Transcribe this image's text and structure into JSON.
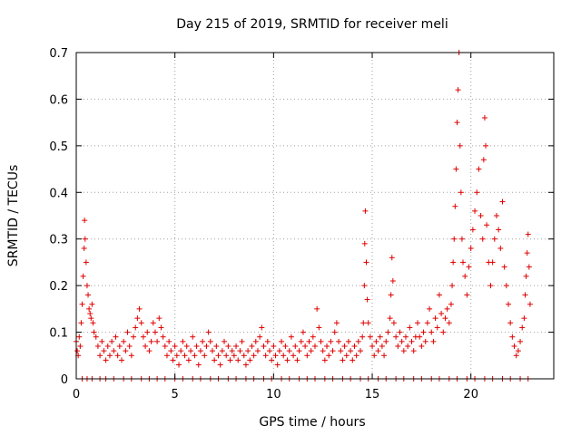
{
  "chart_data": {
    "type": "scatter",
    "title": "Day 215 of 2019, SRMTID for receiver meli",
    "xlabel": "GPS time / hours",
    "ylabel": "SRMTID / TECUs",
    "xlim": [
      0,
      24.2
    ],
    "ylim": [
      0,
      0.7
    ],
    "xticks": [
      0,
      5,
      10,
      15,
      20
    ],
    "yticks": [
      0,
      0.1,
      0.2,
      0.3,
      0.4,
      0.5,
      0.6,
      0.7
    ],
    "xtick_labels": [
      "0",
      "5",
      "10",
      "15",
      "20"
    ],
    "ytick_labels": [
      "0",
      "0.1",
      "0.2",
      "0.3",
      "0.4",
      "0.5",
      "0.6",
      "0.7"
    ],
    "grid": true,
    "marker": "+",
    "color": "#e00000",
    "series": [
      {
        "name": "SRMTID",
        "points": [
          [
            0.0,
            0.08
          ],
          [
            0.05,
            0.06
          ],
          [
            0.1,
            0.05
          ],
          [
            0.15,
            0.09
          ],
          [
            0.2,
            0.07
          ],
          [
            0.25,
            0.12
          ],
          [
            0.3,
            0.16
          ],
          [
            0.35,
            0.22
          ],
          [
            0.4,
            0.28
          ],
          [
            0.42,
            0.34
          ],
          [
            0.45,
            0.3
          ],
          [
            0.5,
            0.25
          ],
          [
            0.55,
            0.2
          ],
          [
            0.6,
            0.18
          ],
          [
            0.65,
            0.15
          ],
          [
            0.7,
            0.14
          ],
          [
            0.75,
            0.13
          ],
          [
            0.8,
            0.16
          ],
          [
            0.85,
            0.12
          ],
          [
            0.9,
            0.1
          ],
          [
            1.0,
            0.09
          ],
          [
            1.1,
            0.07
          ],
          [
            1.2,
            0.05
          ],
          [
            1.3,
            0.08
          ],
          [
            1.4,
            0.06
          ],
          [
            1.5,
            0.04
          ],
          [
            1.6,
            0.07
          ],
          [
            1.7,
            0.05
          ],
          [
            1.8,
            0.08
          ],
          [
            1.9,
            0.06
          ],
          [
            2.0,
            0.09
          ],
          [
            2.1,
            0.05
          ],
          [
            2.2,
            0.07
          ],
          [
            2.3,
            0.04
          ],
          [
            2.4,
            0.08
          ],
          [
            2.5,
            0.06
          ],
          [
            2.6,
            0.1
          ],
          [
            2.7,
            0.07
          ],
          [
            2.8,
            0.05
          ],
          [
            2.9,
            0.09
          ],
          [
            3.0,
            0.11
          ],
          [
            3.1,
            0.13
          ],
          [
            3.2,
            0.15
          ],
          [
            3.3,
            0.12
          ],
          [
            3.4,
            0.09
          ],
          [
            3.5,
            0.07
          ],
          [
            3.6,
            0.1
          ],
          [
            3.7,
            0.06
          ],
          [
            3.8,
            0.08
          ],
          [
            3.9,
            0.12
          ],
          [
            4.0,
            0.1
          ],
          [
            4.1,
            0.08
          ],
          [
            4.2,
            0.13
          ],
          [
            4.3,
            0.11
          ],
          [
            4.4,
            0.09
          ],
          [
            4.5,
            0.07
          ],
          [
            4.6,
            0.05
          ],
          [
            4.7,
            0.08
          ],
          [
            4.8,
            0.06
          ],
          [
            4.9,
            0.04
          ],
          [
            5.0,
            0.07
          ],
          [
            5.1,
            0.05
          ],
          [
            5.2,
            0.03
          ],
          [
            5.3,
            0.06
          ],
          [
            5.4,
            0.08
          ],
          [
            5.5,
            0.05
          ],
          [
            5.6,
            0.07
          ],
          [
            5.7,
            0.04
          ],
          [
            5.8,
            0.06
          ],
          [
            5.9,
            0.09
          ],
          [
            6.0,
            0.05
          ],
          [
            6.1,
            0.07
          ],
          [
            6.2,
            0.03
          ],
          [
            6.3,
            0.06
          ],
          [
            6.4,
            0.08
          ],
          [
            6.5,
            0.05
          ],
          [
            6.6,
            0.07
          ],
          [
            6.7,
            0.1
          ],
          [
            6.8,
            0.08
          ],
          [
            6.9,
            0.06
          ],
          [
            7.0,
            0.04
          ],
          [
            7.1,
            0.07
          ],
          [
            7.2,
            0.05
          ],
          [
            7.3,
            0.03
          ],
          [
            7.4,
            0.06
          ],
          [
            7.5,
            0.08
          ],
          [
            7.6,
            0.05
          ],
          [
            7.7,
            0.07
          ],
          [
            7.8,
            0.04
          ],
          [
            7.9,
            0.06
          ],
          [
            8.0,
            0.05
          ],
          [
            8.1,
            0.07
          ],
          [
            8.2,
            0.04
          ],
          [
            8.3,
            0.06
          ],
          [
            8.4,
            0.08
          ],
          [
            8.5,
            0.05
          ],
          [
            8.6,
            0.03
          ],
          [
            8.7,
            0.06
          ],
          [
            8.8,
            0.04
          ],
          [
            8.9,
            0.07
          ],
          [
            9.0,
            0.05
          ],
          [
            9.1,
            0.08
          ],
          [
            9.2,
            0.06
          ],
          [
            9.3,
            0.09
          ],
          [
            9.4,
            0.11
          ],
          [
            9.5,
            0.07
          ],
          [
            9.6,
            0.05
          ],
          [
            9.7,
            0.08
          ],
          [
            9.8,
            0.06
          ],
          [
            9.9,
            0.04
          ],
          [
            10.0,
            0.07
          ],
          [
            10.1,
            0.05
          ],
          [
            10.2,
            0.03
          ],
          [
            10.3,
            0.06
          ],
          [
            10.4,
            0.08
          ],
          [
            10.5,
            0.05
          ],
          [
            10.6,
            0.07
          ],
          [
            10.7,
            0.04
          ],
          [
            10.8,
            0.06
          ],
          [
            10.9,
            0.09
          ],
          [
            11.0,
            0.05
          ],
          [
            11.1,
            0.07
          ],
          [
            11.2,
            0.04
          ],
          [
            11.3,
            0.06
          ],
          [
            11.4,
            0.08
          ],
          [
            11.5,
            0.1
          ],
          [
            11.6,
            0.07
          ],
          [
            11.7,
            0.05
          ],
          [
            11.8,
            0.08
          ],
          [
            11.9,
            0.06
          ],
          [
            12.0,
            0.09
          ],
          [
            12.1,
            0.07
          ],
          [
            12.2,
            0.15
          ],
          [
            12.3,
            0.11
          ],
          [
            12.4,
            0.08
          ],
          [
            12.5,
            0.06
          ],
          [
            12.6,
            0.04
          ],
          [
            12.7,
            0.07
          ],
          [
            12.8,
            0.05
          ],
          [
            12.9,
            0.08
          ],
          [
            13.0,
            0.06
          ],
          [
            13.1,
            0.1
          ],
          [
            13.2,
            0.12
          ],
          [
            13.3,
            0.08
          ],
          [
            13.4,
            0.06
          ],
          [
            13.5,
            0.04
          ],
          [
            13.6,
            0.07
          ],
          [
            13.7,
            0.05
          ],
          [
            13.8,
            0.08
          ],
          [
            13.9,
            0.06
          ],
          [
            14.0,
            0.04
          ],
          [
            14.1,
            0.07
          ],
          [
            14.2,
            0.05
          ],
          [
            14.3,
            0.08
          ],
          [
            14.4,
            0.06
          ],
          [
            14.5,
            0.09
          ],
          [
            14.55,
            0.12
          ],
          [
            14.6,
            0.2
          ],
          [
            14.62,
            0.29
          ],
          [
            14.65,
            0.36
          ],
          [
            14.7,
            0.25
          ],
          [
            14.75,
            0.17
          ],
          [
            14.8,
            0.12
          ],
          [
            14.9,
            0.09
          ],
          [
            15.0,
            0.07
          ],
          [
            15.1,
            0.05
          ],
          [
            15.2,
            0.08
          ],
          [
            15.3,
            0.06
          ],
          [
            15.4,
            0.09
          ],
          [
            15.5,
            0.07
          ],
          [
            15.6,
            0.05
          ],
          [
            15.7,
            0.08
          ],
          [
            15.8,
            0.1
          ],
          [
            15.9,
            0.13
          ],
          [
            15.95,
            0.18
          ],
          [
            16.0,
            0.26
          ],
          [
            16.05,
            0.21
          ],
          [
            16.1,
            0.12
          ],
          [
            16.2,
            0.09
          ],
          [
            16.3,
            0.07
          ],
          [
            16.4,
            0.1
          ],
          [
            16.5,
            0.08
          ],
          [
            16.6,
            0.06
          ],
          [
            16.7,
            0.09
          ],
          [
            16.8,
            0.07
          ],
          [
            16.9,
            0.11
          ],
          [
            17.0,
            0.08
          ],
          [
            17.1,
            0.06
          ],
          [
            17.2,
            0.09
          ],
          [
            17.3,
            0.12
          ],
          [
            17.4,
            0.09
          ],
          [
            17.5,
            0.07
          ],
          [
            17.6,
            0.1
          ],
          [
            17.7,
            0.08
          ],
          [
            17.8,
            0.12
          ],
          [
            17.9,
            0.15
          ],
          [
            18.0,
            0.1
          ],
          [
            18.1,
            0.08
          ],
          [
            18.2,
            0.13
          ],
          [
            18.3,
            0.11
          ],
          [
            18.4,
            0.18
          ],
          [
            18.5,
            0.14
          ],
          [
            18.6,
            0.1
          ],
          [
            18.7,
            0.13
          ],
          [
            18.8,
            0.15
          ],
          [
            18.9,
            0.12
          ],
          [
            19.0,
            0.16
          ],
          [
            19.05,
            0.2
          ],
          [
            19.1,
            0.25
          ],
          [
            19.15,
            0.3
          ],
          [
            19.2,
            0.37
          ],
          [
            19.25,
            0.45
          ],
          [
            19.3,
            0.55
          ],
          [
            19.35,
            0.62
          ],
          [
            19.4,
            0.7
          ],
          [
            19.45,
            0.5
          ],
          [
            19.5,
            0.4
          ],
          [
            19.55,
            0.3
          ],
          [
            19.6,
            0.25
          ],
          [
            19.7,
            0.22
          ],
          [
            19.8,
            0.18
          ],
          [
            19.9,
            0.24
          ],
          [
            20.0,
            0.28
          ],
          [
            20.1,
            0.32
          ],
          [
            20.2,
            0.36
          ],
          [
            20.3,
            0.4
          ],
          [
            20.4,
            0.45
          ],
          [
            20.5,
            0.35
          ],
          [
            20.6,
            0.3
          ],
          [
            20.65,
            0.47
          ],
          [
            20.7,
            0.56
          ],
          [
            20.75,
            0.5
          ],
          [
            20.8,
            0.33
          ],
          [
            20.9,
            0.25
          ],
          [
            21.0,
            0.2
          ],
          [
            21.1,
            0.25
          ],
          [
            21.2,
            0.3
          ],
          [
            21.3,
            0.35
          ],
          [
            21.4,
            0.32
          ],
          [
            21.5,
            0.28
          ],
          [
            21.6,
            0.38
          ],
          [
            21.7,
            0.24
          ],
          [
            21.8,
            0.2
          ],
          [
            21.9,
            0.16
          ],
          [
            22.0,
            0.12
          ],
          [
            22.1,
            0.09
          ],
          [
            22.2,
            0.07
          ],
          [
            22.3,
            0.05
          ],
          [
            22.4,
            0.06
          ],
          [
            22.5,
            0.08
          ],
          [
            22.6,
            0.11
          ],
          [
            22.7,
            0.13
          ],
          [
            22.75,
            0.18
          ],
          [
            22.8,
            0.22
          ],
          [
            22.85,
            0.27
          ],
          [
            22.9,
            0.31
          ],
          [
            22.95,
            0.24
          ],
          [
            23.0,
            0.16
          ]
        ]
      }
    ],
    "zero_values_at_x": [
      0.3,
      0.55,
      0.8,
      1.2,
      1.5,
      1.9,
      2.4,
      2.8,
      3.3,
      3.7,
      4.1,
      4.5,
      5.0,
      5.4,
      5.9,
      6.3,
      6.8,
      7.2,
      7.7,
      8.1,
      8.6,
      9.0,
      9.5,
      9.9,
      10.4,
      10.8,
      11.3,
      11.7,
      12.1,
      12.6,
      13.0,
      13.5,
      13.9,
      14.4,
      14.8,
      15.3,
      15.7,
      16.2,
      16.6,
      17.1,
      17.5,
      18.0,
      18.4,
      18.9,
      19.3,
      19.8,
      20.2,
      20.7,
      21.1,
      21.6,
      22.0,
      22.5,
      22.9
    ]
  }
}
